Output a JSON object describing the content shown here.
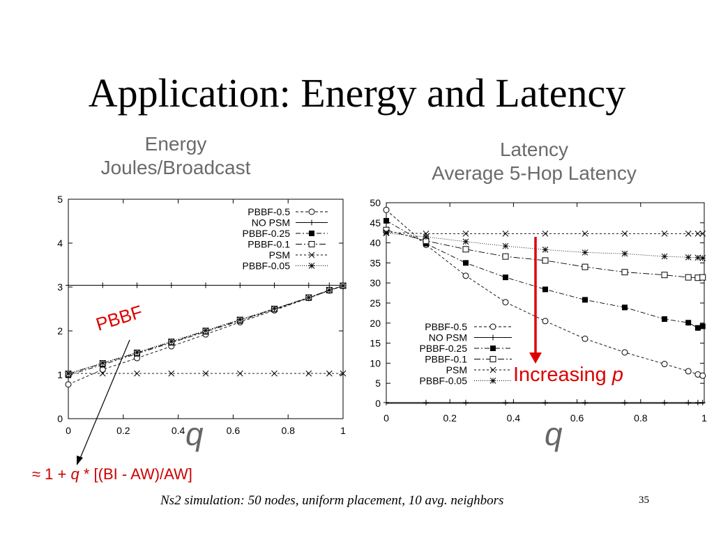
{
  "slide": {
    "title": "Application: Energy and Latency",
    "caption": "Ns2 simulation: 50 nodes, uniform placement, 10 avg. neighbors",
    "page_number": "35",
    "formula_prefix": "≈ 1 + ",
    "formula_var": "q",
    "formula_suffix": " * [(BI - AW)/AW]",
    "pbbf_annotation": "PBBF",
    "increasing_text": "Increasing ",
    "increasing_var": "p",
    "energy_x_symbol": "q",
    "latency_x_symbol": "q",
    "colors": {
      "annotation": "#dd0000",
      "panel_title": "#6a6a6a",
      "arrow": "#dd0000"
    }
  },
  "chart_data": [
    {
      "type": "line",
      "title": "Energy",
      "subtitle": "Joules/Broadcast",
      "xlabel": "q",
      "ylabel": "",
      "xlim": [
        0,
        1
      ],
      "ylim": [
        0,
        5
      ],
      "xticks": [
        0,
        0.2,
        0.4,
        0.6,
        0.8,
        1
      ],
      "xtick_labels": [
        "0",
        "0.2",
        "0.4",
        "0.6",
        "0.8",
        "1"
      ],
      "yticks": [
        0,
        1,
        2,
        3,
        4,
        5
      ],
      "ytick_labels": [
        "0",
        "1",
        "2",
        "3",
        "4",
        "5"
      ],
      "legend_position": "top-right",
      "x": [
        0,
        0.125,
        0.25,
        0.375,
        0.5,
        0.625,
        0.75,
        0.875,
        0.95,
        1
      ],
      "series": [
        {
          "name": "PBBF-0.5",
          "marker": "circle",
          "dash": "4,3",
          "values": [
            0.78,
            1.12,
            1.38,
            1.65,
            1.92,
            2.2,
            2.47,
            2.75,
            2.92,
            3.02
          ]
        },
        {
          "name": "NO PSM",
          "marker": "plus",
          "dash": "none",
          "values": [
            3.04,
            3.04,
            3.04,
            3.04,
            3.04,
            3.04,
            3.04,
            3.04,
            3.04,
            3.04
          ]
        },
        {
          "name": "PBBF-0.25",
          "marker": "filled-square",
          "dash": "7,3,2,3",
          "values": [
            0.99,
            1.23,
            1.48,
            1.73,
            1.98,
            2.23,
            2.49,
            2.75,
            2.92,
            3.03
          ]
        },
        {
          "name": "PBBF-0.1",
          "marker": "open-square",
          "dash": "9,3,2,3",
          "values": [
            1.02,
            1.26,
            1.5,
            1.75,
            2.0,
            2.25,
            2.5,
            2.76,
            2.93,
            3.03
          ]
        },
        {
          "name": "PSM",
          "marker": "x",
          "dash": "3,3",
          "values": [
            1.03,
            1.03,
            1.03,
            1.03,
            1.03,
            1.03,
            1.03,
            1.03,
            1.03,
            1.03
          ]
        },
        {
          "name": "PBBF-0.05",
          "marker": "star",
          "dash": "1,2",
          "values": [
            1.03,
            1.27,
            1.51,
            1.76,
            2.01,
            2.26,
            2.51,
            2.76,
            2.93,
            3.03
          ]
        }
      ]
    },
    {
      "type": "line",
      "title": "Latency",
      "subtitle": "Average 5-Hop Latency",
      "xlabel": "q",
      "ylabel": "",
      "xlim": [
        0,
        1
      ],
      "ylim": [
        0,
        50
      ],
      "xticks": [
        0,
        0.2,
        0.4,
        0.6,
        0.8,
        1
      ],
      "xtick_labels": [
        "0",
        "0.2",
        "0.4",
        "0.6",
        "0.8",
        "1"
      ],
      "yticks": [
        0,
        5,
        10,
        15,
        20,
        25,
        30,
        35,
        40,
        45,
        50
      ],
      "ytick_labels": [
        "0",
        "5",
        "10",
        "15",
        "20",
        "25",
        "30",
        "35",
        "40",
        "45",
        "50"
      ],
      "legend_position": "bottom-left",
      "x": [
        0,
        0.125,
        0.25,
        0.375,
        0.5,
        0.625,
        0.75,
        0.875,
        0.95,
        0.98,
        0.995
      ],
      "series": [
        {
          "name": "PBBF-0.5",
          "marker": "circle",
          "dash": "4,3",
          "values": [
            48.2,
            39.5,
            31.8,
            25.2,
            20.5,
            16.1,
            12.7,
            9.8,
            8.0,
            7.2,
            6.9
          ]
        },
        {
          "name": "NO PSM",
          "marker": "plus",
          "dash": "none",
          "values": [
            0.2,
            0.2,
            0.2,
            0.2,
            0.2,
            0.2,
            0.2,
            0.2,
            0.2,
            0.2,
            0.2
          ]
        },
        {
          "name": "PBBF-0.25",
          "marker": "filled-square",
          "dash": "7,3,2,3",
          "values": [
            45.5,
            39.8,
            35.0,
            31.4,
            28.4,
            25.8,
            23.9,
            21.0,
            20.1,
            18.8,
            19.2
          ]
        },
        {
          "name": "PBBF-0.1",
          "marker": "open-square",
          "dash": "9,3,2,3",
          "values": [
            43.2,
            40.5,
            38.4,
            36.6,
            35.6,
            34.0,
            32.7,
            32.0,
            31.4,
            31.3,
            31.4
          ]
        },
        {
          "name": "PSM",
          "marker": "x",
          "dash": "3,3",
          "values": [
            42.6,
            42.3,
            42.3,
            42.3,
            42.3,
            42.3,
            42.3,
            42.3,
            42.3,
            42.3,
            42.3
          ]
        },
        {
          "name": "PBBF-0.05",
          "marker": "star",
          "dash": "1,2",
          "values": [
            42.4,
            41.5,
            40.3,
            39.2,
            38.3,
            37.6,
            37.3,
            36.6,
            36.4,
            36.3,
            36.2
          ]
        }
      ]
    }
  ]
}
